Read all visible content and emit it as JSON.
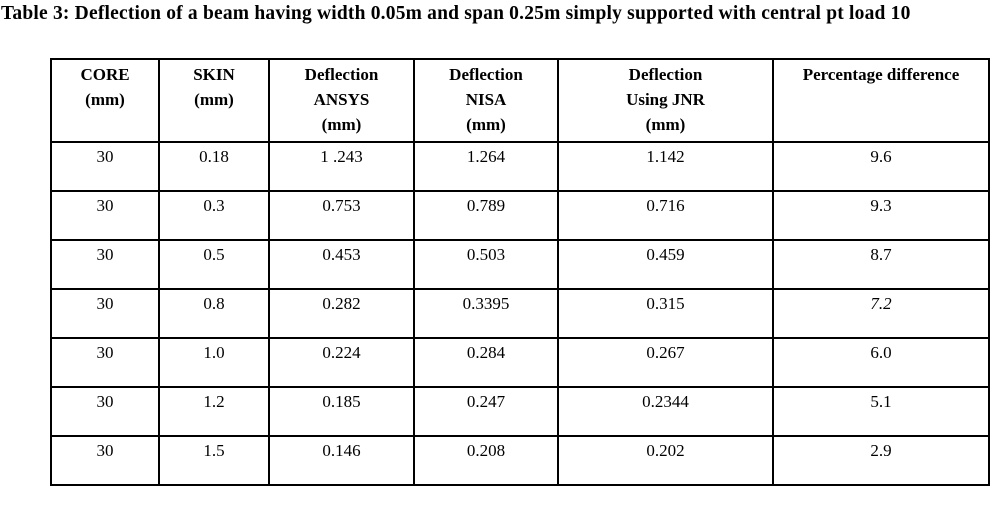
{
  "caption": "Table 3: Deflection of a beam having width 0.05m and span 0.25m simply supported with central pt load 10",
  "colors": {
    "text": "#000000",
    "background": "#ffffff",
    "border": "#000000"
  },
  "table": {
    "headers": [
      "CORE\n(mm)",
      "SKIN\n(mm)",
      "Deflection\nANSYS\n(mm)",
      "Deflection\nNISA\n(mm)",
      "Deflection\nUsing JNR\n(mm)",
      "Percentage difference"
    ],
    "rows": [
      {
        "cells": [
          "30",
          "0.18",
          "1 .243",
          "1.264",
          "1.142",
          "9.6"
        ]
      },
      {
        "cells": [
          "30",
          "0.3",
          "0.753",
          "0.789",
          "0.716",
          "9.3"
        ]
      },
      {
        "cells": [
          "30",
          "0.5",
          "0.453",
          "0.503",
          "0.459",
          "8.7"
        ]
      },
      {
        "cells": [
          "30",
          "0.8",
          "0.282",
          "0.3395",
          "0.315",
          "7.2"
        ],
        "italic_cols": [
          5
        ]
      },
      {
        "cells": [
          "30",
          "1.0",
          "0.224",
          "0.284",
          "0.267",
          "6.0"
        ]
      },
      {
        "cells": [
          "30",
          "1.2",
          "0.185",
          "0.247",
          "0.2344",
          "5.1"
        ]
      },
      {
        "cells": [
          "30",
          "1.5",
          "0.146",
          "0.208",
          "0.202",
          "2.9"
        ]
      }
    ]
  }
}
